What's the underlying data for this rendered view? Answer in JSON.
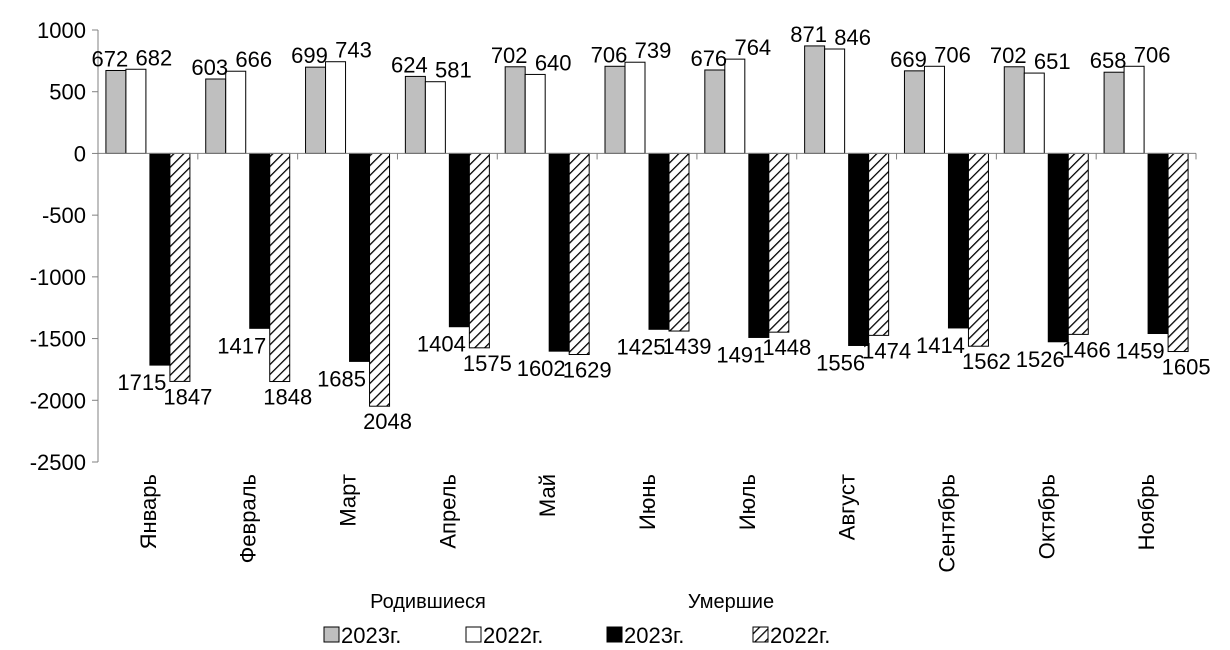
{
  "chart_data": {
    "type": "bar",
    "categories": [
      "Январь",
      "Февраль",
      "Март",
      "Апрель",
      "Май",
      "Июнь",
      "Июль",
      "Август",
      "Сентябрь",
      "Октябрь",
      "Ноябрь"
    ],
    "series": [
      {
        "name": "2023г.",
        "group": "Родившиеся",
        "fill": "#bfbfbf",
        "stroke": "#000000",
        "pattern": "solid",
        "values": [
          672,
          603,
          699,
          624,
          702,
          706,
          676,
          871,
          669,
          702,
          658
        ]
      },
      {
        "name": "2022г.",
        "group": "Родившиеся",
        "fill": "#ffffff",
        "stroke": "#000000",
        "pattern": "solid",
        "values": [
          682,
          666,
          743,
          581,
          640,
          739,
          764,
          846,
          706,
          651,
          706
        ]
      },
      {
        "name": "2023г.",
        "group": "Умершие",
        "fill": "#000000",
        "stroke": "#000000",
        "pattern": "solid",
        "values": [
          -1715,
          -1417,
          -1685,
          -1404,
          -1602,
          -1425,
          -1491,
          -1556,
          -1414,
          -1526,
          -1459
        ]
      },
      {
        "name": "2022г.",
        "group": "Умершие",
        "fill": "#ffffff",
        "stroke": "#000000",
        "pattern": "hatch",
        "values": [
          -1847,
          -1848,
          -2048,
          -1575,
          -1629,
          -1439,
          -1448,
          -1474,
          -1562,
          -1466,
          -1605
        ]
      }
    ],
    "data_labels": [
      [
        "672",
        "603",
        "699",
        "624",
        "702",
        "706",
        "676",
        "871",
        "669",
        "702",
        "658"
      ],
      [
        "682",
        "666",
        "743",
        "581",
        "640",
        "739",
        "764",
        "846",
        "706",
        "651",
        "706"
      ],
      [
        "1715",
        "1417",
        "1685",
        "1404",
        "1602",
        "1425",
        "1491",
        "1556",
        "1414",
        "1526",
        "1459"
      ],
      [
        "1847",
        "1848",
        "2048",
        "1575",
        "1629",
        "1439",
        "1448",
        "1474",
        "1562",
        "1466",
        "1605"
      ]
    ],
    "ylim": [
      -2500,
      1000
    ],
    "yticks": [
      1000,
      500,
      0,
      -500,
      -1000,
      -1500,
      -2000,
      -2500
    ],
    "ytick_labels": [
      "1000",
      "500",
      "0",
      "-500",
      "-1000",
      "-1500",
      "-2000",
      "-2500"
    ],
    "group_labels": [
      "Родившиеся",
      "Умершие"
    ],
    "grid": false,
    "legend_position": "bottom",
    "title": "",
    "xlabel": "",
    "ylabel": ""
  }
}
